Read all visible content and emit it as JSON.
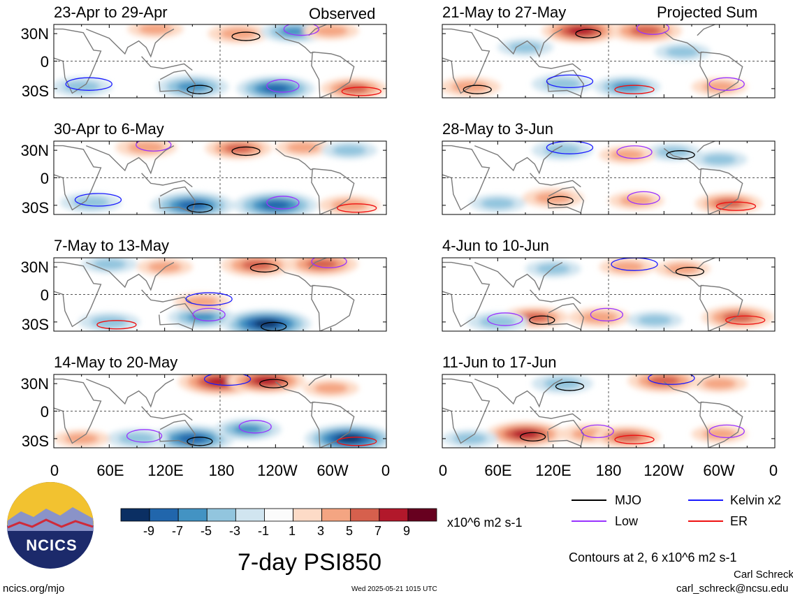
{
  "panel_tags": {
    "left": "Observed",
    "right": "Projected Sum"
  },
  "y_ticks": [
    "30N",
    "0",
    "30S"
  ],
  "x_ticks": [
    "0",
    "60E",
    "120E",
    "180",
    "120W",
    "60W",
    "0"
  ],
  "colorbar": {
    "labels": [
      "-9",
      "-7",
      "-5",
      "-3",
      "-1",
      "1",
      "3",
      "5",
      "7",
      "9"
    ],
    "unit": "x10^6 m2 s-1",
    "colors": [
      "#0b2f63",
      "#2166ac",
      "#4393c3",
      "#92c5de",
      "#d1e5f0",
      "#fbfbfb",
      "#fddbc7",
      "#f4a582",
      "#d6604d",
      "#b2182b",
      "#67001f"
    ]
  },
  "legend": [
    {
      "label": "MJO",
      "color": "#000000"
    },
    {
      "label": "Kelvin x2",
      "color": "#1a1aff"
    },
    {
      "label": "Low",
      "color": "#9933ff"
    },
    {
      "label": "ER",
      "color": "#ee1111"
    }
  ],
  "title": "7-day PSI850",
  "contours_note": "Contours at 2, 6 x10^6 m2 s-1",
  "logo_text": "NCICS",
  "footer": {
    "url": "ncics.org/mjo",
    "timestamp": "Wed 2025-05-21 1015 UTC",
    "author": "Carl Schreck",
    "email": "carl_schreck@ncsu.edu"
  },
  "chart_data": [
    {
      "type": "heatmap",
      "title": "23-Apr to 29-Apr",
      "group": "Observed",
      "xlim": [
        "0",
        "0"
      ],
      "ylim": [
        "30S",
        "30N"
      ],
      "anomalies": [
        {
          "lon": 150,
          "lat": -28,
          "value": -6
        },
        {
          "lon": 240,
          "lat": -30,
          "value": -7
        },
        {
          "lon": 325,
          "lat": -30,
          "value": 5
        },
        {
          "lon": 30,
          "lat": -28,
          "value": -4
        },
        {
          "lon": 200,
          "lat": 30,
          "value": 4
        },
        {
          "lon": 260,
          "lat": 32,
          "value": -5
        },
        {
          "lon": 110,
          "lat": 35,
          "value": 3
        },
        {
          "lon": 300,
          "lat": 33,
          "value": 3
        }
      ]
    },
    {
      "type": "heatmap",
      "title": "30-Apr to 6-May",
      "group": "Observed",
      "xlim": [
        "0",
        "0"
      ],
      "ylim": [
        "30S",
        "30N"
      ],
      "anomalies": [
        {
          "lon": 150,
          "lat": -30,
          "value": -8
        },
        {
          "lon": 240,
          "lat": -30,
          "value": -8
        },
        {
          "lon": 320,
          "lat": -30,
          "value": 4
        },
        {
          "lon": 40,
          "lat": -27,
          "value": -4
        },
        {
          "lon": 200,
          "lat": 32,
          "value": 5
        },
        {
          "lon": 100,
          "lat": 33,
          "value": 4
        },
        {
          "lon": 270,
          "lat": 33,
          "value": 3
        },
        {
          "lon": 320,
          "lat": 30,
          "value": -3
        }
      ]
    },
    {
      "type": "heatmap",
      "title": "7-May to 13-May",
      "group": "Observed",
      "xlim": [
        "0",
        "0"
      ],
      "ylim": [
        "30S",
        "30N"
      ],
      "anomalies": [
        {
          "lon": 230,
          "lat": -32,
          "value": -9
        },
        {
          "lon": 160,
          "lat": -25,
          "value": -5
        },
        {
          "lon": 60,
          "lat": -30,
          "value": -4
        },
        {
          "lon": 160,
          "lat": -8,
          "value": 3
        },
        {
          "lon": 220,
          "lat": 32,
          "value": 6
        },
        {
          "lon": 290,
          "lat": 33,
          "value": 6
        },
        {
          "lon": 120,
          "lat": 30,
          "value": 3
        },
        {
          "lon": 60,
          "lat": 33,
          "value": -3
        }
      ]
    },
    {
      "type": "heatmap",
      "title": "14-May to 20-May",
      "group": "Observed",
      "xlim": [
        "0",
        "0"
      ],
      "ylim": [
        "30S",
        "30N"
      ],
      "anomalies": [
        {
          "lon": 150,
          "lat": -30,
          "value": -8
        },
        {
          "lon": 210,
          "lat": -20,
          "value": -5
        },
        {
          "lon": 320,
          "lat": -30,
          "value": -9
        },
        {
          "lon": 180,
          "lat": 32,
          "value": 8
        },
        {
          "lon": 230,
          "lat": 33,
          "value": 7
        },
        {
          "lon": 90,
          "lat": -30,
          "value": -4
        },
        {
          "lon": 300,
          "lat": 25,
          "value": 3
        },
        {
          "lon": 30,
          "lat": -30,
          "value": 3
        }
      ]
    },
    {
      "type": "heatmap",
      "title": "21-May to 27-May",
      "group": "Projected Sum",
      "xlim": [
        "0",
        "0"
      ],
      "ylim": [
        "30S",
        "30N"
      ],
      "anomalies": [
        {
          "lon": 150,
          "lat": 33,
          "value": 7
        },
        {
          "lon": 220,
          "lat": 33,
          "value": 6
        },
        {
          "lon": 200,
          "lat": -28,
          "value": -5
        },
        {
          "lon": 130,
          "lat": -25,
          "value": -4
        },
        {
          "lon": 30,
          "lat": -28,
          "value": 4
        },
        {
          "lon": 300,
          "lat": -28,
          "value": 3
        },
        {
          "lon": 90,
          "lat": 15,
          "value": -3
        },
        {
          "lon": 260,
          "lat": 10,
          "value": -3
        }
      ]
    },
    {
      "type": "heatmap",
      "title": "28-May to 3-Jun",
      "group": "Projected Sum",
      "xlim": [
        "0",
        "0"
      ],
      "ylim": [
        "30S",
        "30N"
      ],
      "anomalies": [
        {
          "lon": 120,
          "lat": -22,
          "value": 4
        },
        {
          "lon": 210,
          "lat": -25,
          "value": 3
        },
        {
          "lon": 310,
          "lat": -28,
          "value": 5
        },
        {
          "lon": 130,
          "lat": 30,
          "value": -4
        },
        {
          "lon": 250,
          "lat": 28,
          "value": -3
        },
        {
          "lon": 200,
          "lat": 25,
          "value": 3
        },
        {
          "lon": 60,
          "lat": -28,
          "value": -3
        },
        {
          "lon": 300,
          "lat": 20,
          "value": -3
        }
      ]
    },
    {
      "type": "heatmap",
      "title": "4-Jun to 10-Jun",
      "group": "Projected Sum",
      "xlim": [
        "0",
        "0"
      ],
      "ylim": [
        "30S",
        "30N"
      ],
      "anomalies": [
        {
          "lon": 100,
          "lat": -25,
          "value": 5
        },
        {
          "lon": 170,
          "lat": -25,
          "value": 4
        },
        {
          "lon": 320,
          "lat": -25,
          "value": 6
        },
        {
          "lon": 200,
          "lat": 30,
          "value": 3
        },
        {
          "lon": 260,
          "lat": 28,
          "value": 3
        },
        {
          "lon": 60,
          "lat": -30,
          "value": -4
        },
        {
          "lon": 230,
          "lat": -28,
          "value": -3
        },
        {
          "lon": 120,
          "lat": 28,
          "value": -3
        }
      ]
    },
    {
      "type": "heatmap",
      "title": "11-Jun to 17-Jun",
      "group": "Projected Sum",
      "xlim": [
        "0",
        "0"
      ],
      "ylim": [
        "30S",
        "30N"
      ],
      "anomalies": [
        {
          "lon": 90,
          "lat": -25,
          "value": 7
        },
        {
          "lon": 160,
          "lat": -25,
          "value": 4
        },
        {
          "lon": 200,
          "lat": -28,
          "value": 5
        },
        {
          "lon": 240,
          "lat": 33,
          "value": 6
        },
        {
          "lon": 130,
          "lat": 30,
          "value": -4
        },
        {
          "lon": 300,
          "lat": -25,
          "value": 3
        },
        {
          "lon": 30,
          "lat": -30,
          "value": -3
        },
        {
          "lon": 300,
          "lat": 30,
          "value": 3
        }
      ]
    }
  ]
}
